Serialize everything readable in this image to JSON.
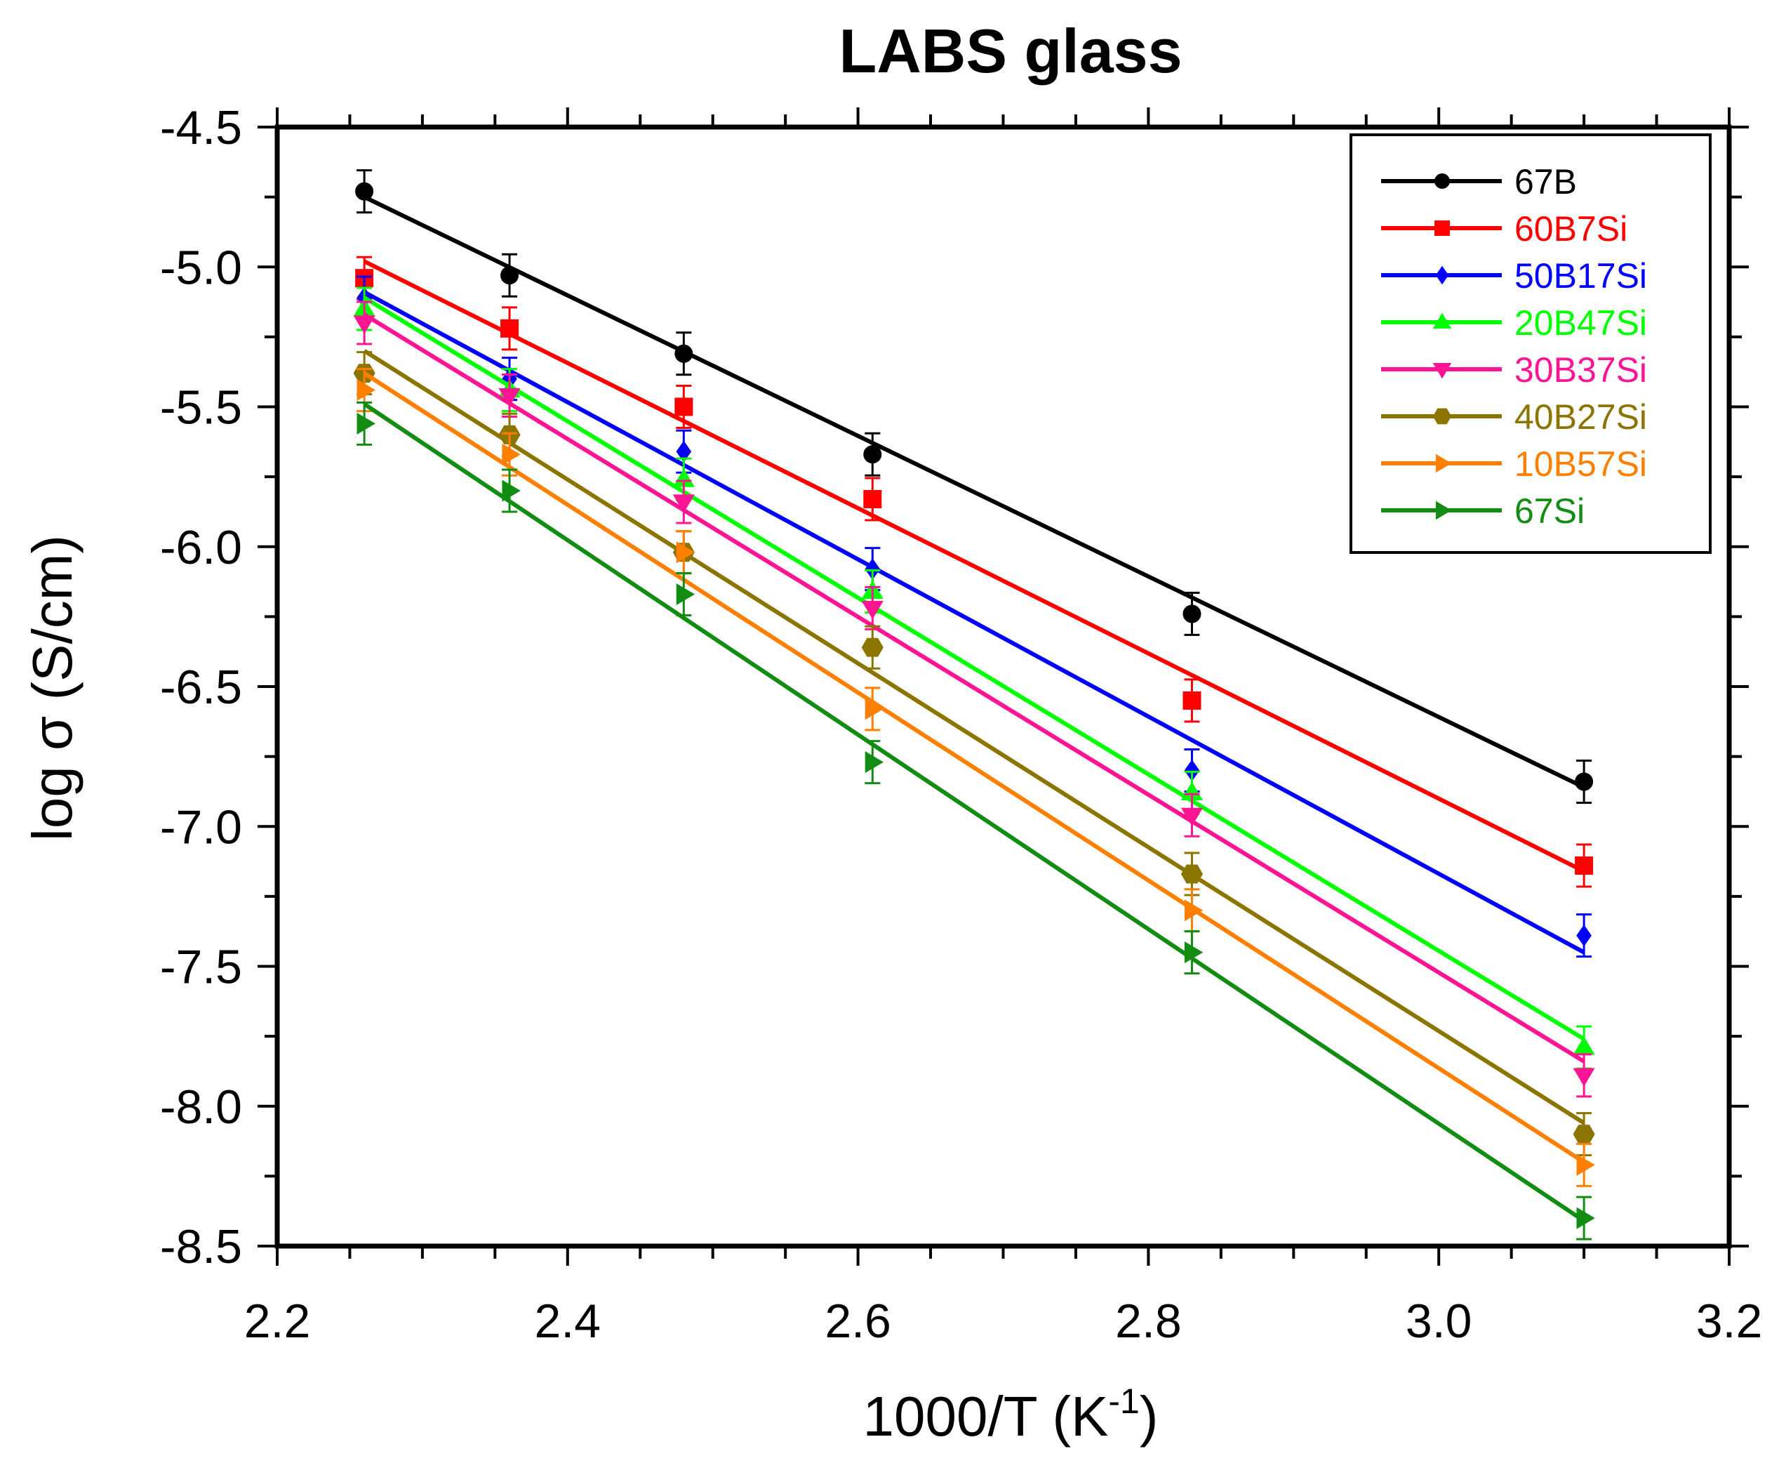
{
  "chart_data": {
    "type": "line",
    "title": "LABS glass",
    "xlabel": {
      "base": "1000/T (K",
      "sup": "-1",
      "close": ")"
    },
    "ylabel": "log σ (S/cm)",
    "xlim": [
      2.2,
      3.2
    ],
    "ylim": [
      -8.5,
      -4.5
    ],
    "xticks": [
      2.2,
      2.4,
      2.6,
      2.8,
      3.0,
      3.2
    ],
    "xtick_labels": [
      "2.2",
      "2.4",
      "2.6",
      "2.8",
      "3.0",
      "3.2"
    ],
    "yticks": [
      -4.5,
      -5.0,
      -5.5,
      -6.0,
      -6.5,
      -7.0,
      -7.5,
      -8.0,
      -8.5
    ],
    "ytick_labels": [
      "-4.5",
      "-5.0",
      "-5.5",
      "-6.0",
      "-6.5",
      "-7.0",
      "-7.5",
      "-8.0",
      "-8.5"
    ],
    "x": [
      2.26,
      2.36,
      2.48,
      2.61,
      2.83,
      3.1
    ],
    "legend_position": "top-right",
    "series": [
      {
        "name": "67B",
        "color": "#000000",
        "marker": "circle",
        "values": [
          -4.73,
          -5.03,
          -5.31,
          -5.67,
          -6.24,
          -6.84
        ],
        "fit": [
          [
            2.26,
            -4.75
          ],
          [
            3.1,
            -6.86
          ]
        ]
      },
      {
        "name": "60B7Si",
        "color": "#ff0000",
        "marker": "square",
        "values": [
          -5.04,
          -5.22,
          -5.5,
          -5.83,
          -6.55,
          -7.14
        ],
        "fit": [
          [
            2.26,
            -4.98
          ],
          [
            3.1,
            -7.16
          ]
        ]
      },
      {
        "name": "50B17Si",
        "color": "#0000ff",
        "marker": "diamond",
        "values": [
          -5.11,
          -5.4,
          -5.66,
          -6.08,
          -6.8,
          -7.39
        ],
        "fit": [
          [
            2.26,
            -5.09
          ],
          [
            3.1,
            -7.45
          ]
        ]
      },
      {
        "name": "20B47Si",
        "color": "#00ff00",
        "marker": "triangle-up",
        "values": [
          -5.15,
          -5.44,
          -5.76,
          -6.16,
          -6.88,
          -7.79
        ],
        "fit": [
          [
            2.26,
            -5.11
          ],
          [
            3.1,
            -7.76
          ]
        ]
      },
      {
        "name": "30B37Si",
        "color": "#ff1493",
        "marker": "triangle-down",
        "values": [
          -5.2,
          -5.46,
          -5.84,
          -6.22,
          -6.96,
          -7.89
        ],
        "fit": [
          [
            2.26,
            -5.17
          ],
          [
            3.1,
            -7.84
          ]
        ]
      },
      {
        "name": "40B27Si",
        "color": "#8b7400",
        "marker": "hexagon",
        "values": [
          -5.38,
          -5.6,
          -6.02,
          -6.36,
          -7.17,
          -8.1
        ],
        "fit": [
          [
            2.26,
            -5.3
          ],
          [
            3.1,
            -8.06
          ]
        ]
      },
      {
        "name": "10B57Si",
        "color": "#ff7f00",
        "marker": "triangle-right",
        "values": [
          -5.44,
          -5.67,
          -6.02,
          -6.58,
          -7.3,
          -8.21
        ],
        "fit": [
          [
            2.26,
            -5.38
          ],
          [
            3.1,
            -8.2
          ]
        ]
      },
      {
        "name": "67Si",
        "color": "#138c13",
        "marker": "triangle-right",
        "values": [
          -5.56,
          -5.8,
          -6.17,
          -6.77,
          -7.45,
          -8.4
        ],
        "fit": [
          [
            2.26,
            -5.49
          ],
          [
            3.1,
            -8.41
          ]
        ]
      }
    ]
  }
}
